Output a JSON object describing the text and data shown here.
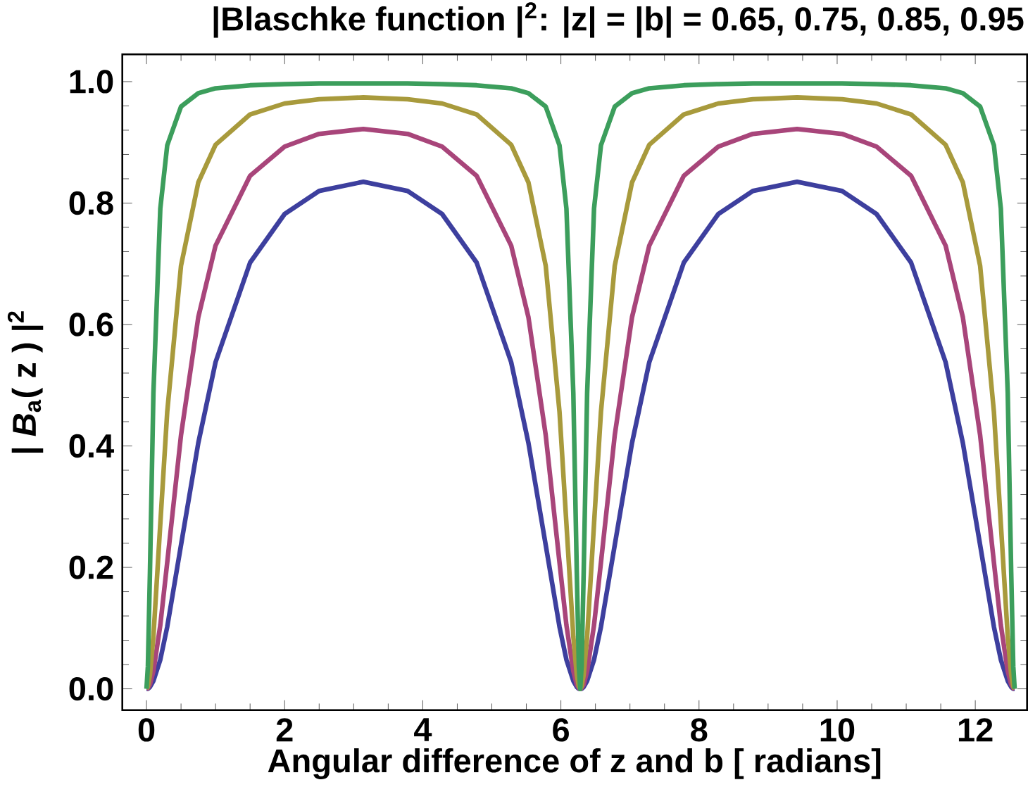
{
  "chart_data": {
    "type": "line",
    "title": "|Blaschke function |$^{2}$:  |z| = |b| = 0.65,  0.75,  0.85,  0.95",
    "xlabel": "Angular difference of  z  and  b  [ radians]",
    "ylabel": "|  *B*$_{a}$( z ) |$^{2}$",
    "x": [
      0,
      0.02,
      0.05,
      0.1,
      0.2,
      0.3,
      0.5,
      0.75,
      1,
      1.5,
      2,
      2.5,
      3.14,
      3.78,
      4.28,
      4.78,
      5.28,
      5.53,
      5.78,
      5.98,
      6.08,
      6.18,
      6.23,
      6.26,
      6.28,
      6.3,
      6.33,
      6.38,
      6.48,
      6.58,
      6.78,
      7.03,
      7.28,
      7.78,
      8.28,
      8.78,
      9.42,
      10.07,
      10.57,
      11.07,
      11.57,
      11.82,
      12.07,
      12.27,
      12.37,
      12.47,
      12.52,
      12.55,
      12.57
    ],
    "series": [
      {
        "color": "#3d3f9e",
        "values": [
          0,
          0,
          0.003,
          0.013,
          0.048,
          0.102,
          0.237,
          0.405,
          0.538,
          0.702,
          0.782,
          0.82,
          0.835,
          0.82,
          0.782,
          0.702,
          0.538,
          0.405,
          0.237,
          0.102,
          0.048,
          0.013,
          0.003,
          0,
          0,
          0,
          0.003,
          0.013,
          0.048,
          0.102,
          0.237,
          0.405,
          0.538,
          0.702,
          0.782,
          0.82,
          0.835,
          0.82,
          0.782,
          0.702,
          0.538,
          0.405,
          0.237,
          0.102,
          0.048,
          0.013,
          0.003,
          0,
          0
        ]
      },
      {
        "color": "#a8457a",
        "values": [
          0,
          0.001,
          0.007,
          0.029,
          0.105,
          0.208,
          0.418,
          0.612,
          0.73,
          0.845,
          0.893,
          0.914,
          0.922,
          0.914,
          0.893,
          0.845,
          0.73,
          0.612,
          0.418,
          0.208,
          0.105,
          0.029,
          0.007,
          0.001,
          0,
          0.001,
          0.007,
          0.029,
          0.105,
          0.208,
          0.418,
          0.612,
          0.73,
          0.845,
          0.893,
          0.914,
          0.922,
          0.914,
          0.893,
          0.845,
          0.73,
          0.612,
          0.418,
          0.208,
          0.105,
          0.029,
          0.007,
          0.001,
          0
        ]
      },
      {
        "color": "#a89a3c",
        "values": [
          0,
          0.004,
          0.023,
          0.086,
          0.272,
          0.456,
          0.697,
          0.834,
          0.896,
          0.946,
          0.964,
          0.971,
          0.974,
          0.971,
          0.964,
          0.946,
          0.896,
          0.834,
          0.697,
          0.456,
          0.272,
          0.086,
          0.023,
          0.004,
          0,
          0.004,
          0.023,
          0.086,
          0.272,
          0.456,
          0.697,
          0.834,
          0.896,
          0.946,
          0.964,
          0.971,
          0.974,
          0.971,
          0.964,
          0.946,
          0.896,
          0.834,
          0.697,
          0.456,
          0.272,
          0.086,
          0.023,
          0.004,
          0
        ]
      },
      {
        "color": "#3c9e5c",
        "values": [
          0,
          0.037,
          0.192,
          0.487,
          0.791,
          0.895,
          0.959,
          0.981,
          0.989,
          0.994,
          0.996,
          0.997,
          0.997,
          0.997,
          0.996,
          0.994,
          0.989,
          0.981,
          0.959,
          0.895,
          0.791,
          0.487,
          0.192,
          0.037,
          0,
          0.037,
          0.192,
          0.487,
          0.791,
          0.895,
          0.959,
          0.981,
          0.989,
          0.994,
          0.996,
          0.997,
          0.997,
          0.997,
          0.996,
          0.994,
          0.989,
          0.981,
          0.959,
          0.895,
          0.791,
          0.487,
          0.192,
          0.037,
          0
        ]
      }
    ],
    "xlim": [
      -0.35,
      12.75
    ],
    "ylim": [
      -0.035,
      1.045
    ],
    "xticks": [
      0,
      2,
      4,
      6,
      8,
      10,
      12
    ],
    "yticks": [
      {
        "value": 0,
        "label": "0.0"
      },
      {
        "value": 0.2,
        "label": "0.2"
      },
      {
        "value": 0.4,
        "label": "0.4"
      },
      {
        "value": 0.6,
        "label": "0.6"
      },
      {
        "value": 0.8,
        "label": "0.8"
      },
      {
        "value": 1,
        "label": "1.0"
      }
    ],
    "grid": false,
    "marker": "none",
    "line_style": "solid"
  }
}
